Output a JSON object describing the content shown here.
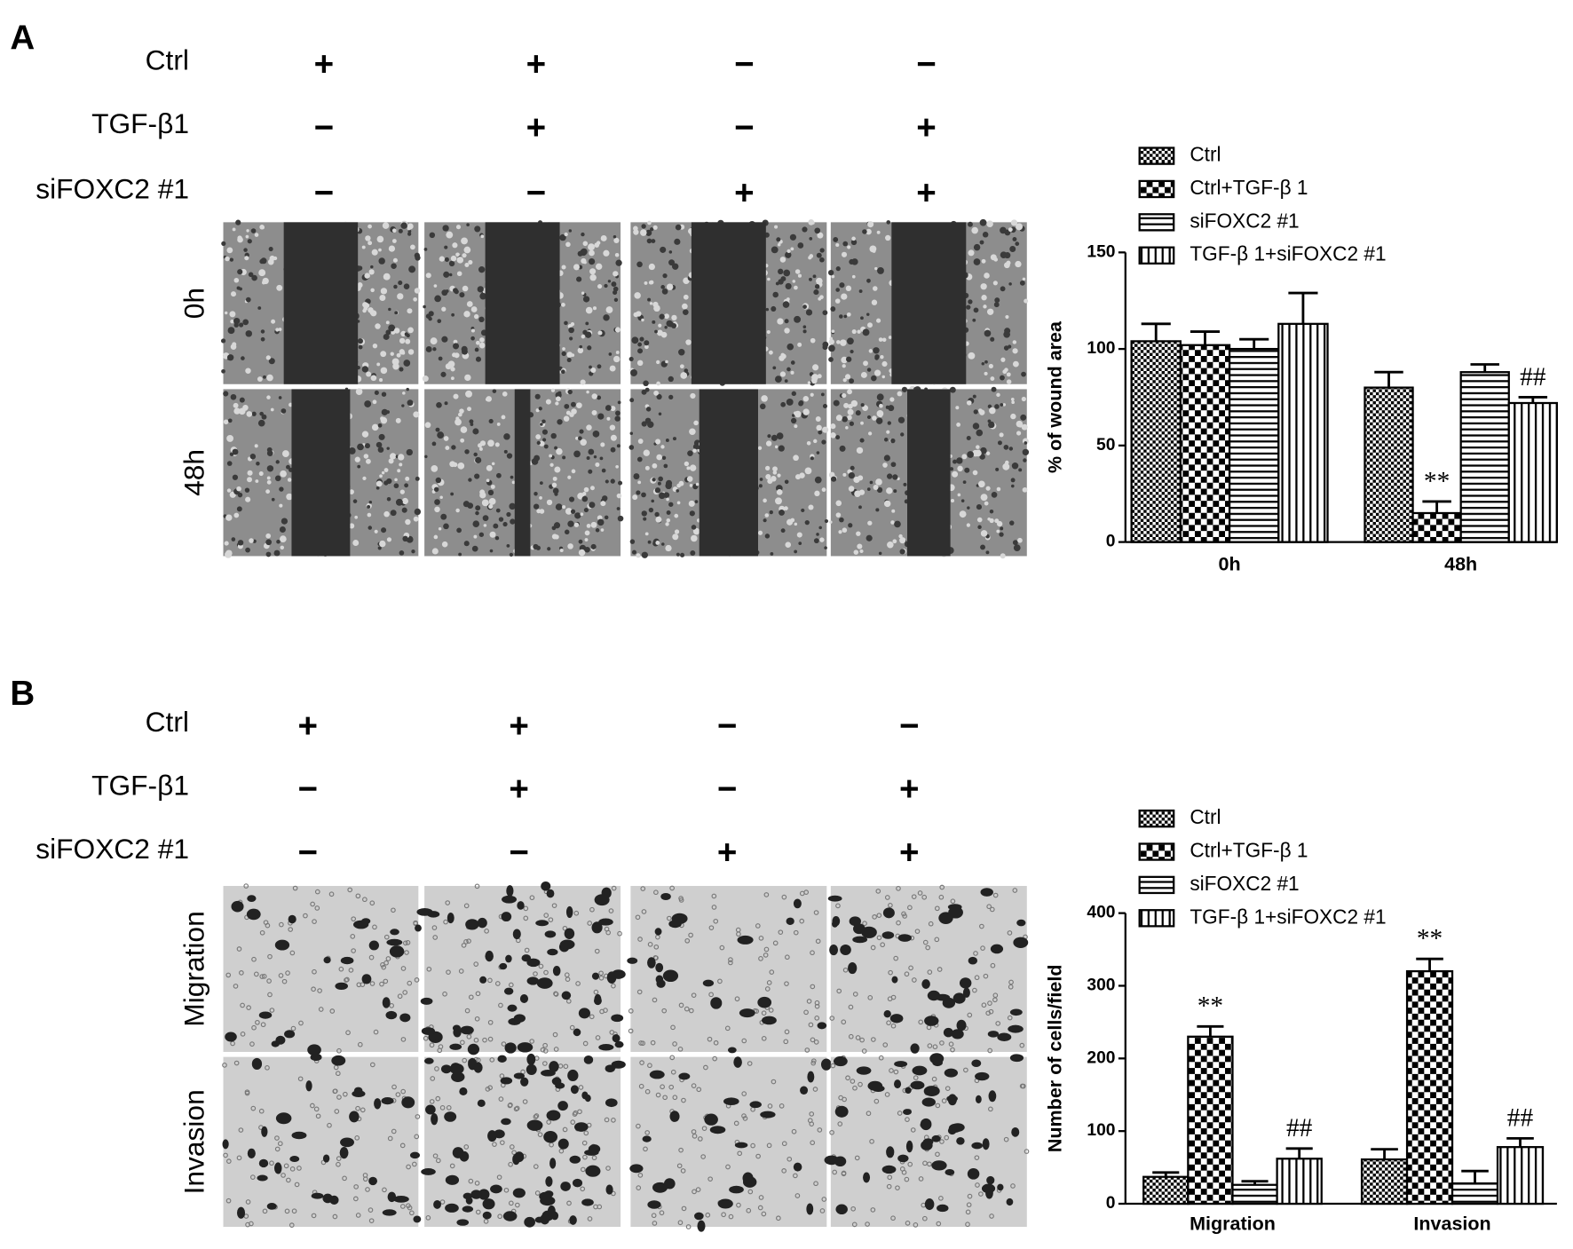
{
  "panels": [
    {
      "letter": "A",
      "treatments": [
        {
          "label": "Ctrl",
          "signs": [
            "+",
            "+",
            "−",
            "−"
          ]
        },
        {
          "label": "TGF-β1",
          "signs": [
            "−",
            "+",
            "−",
            "+"
          ]
        },
        {
          "label": "siFOXC2 #1",
          "signs": [
            "−",
            "−",
            "+",
            "+"
          ]
        }
      ],
      "image_rows": [
        "0h",
        "48h"
      ]
    },
    {
      "letter": "B",
      "treatments": [
        {
          "label": "Ctrl",
          "signs": [
            "+",
            "+",
            "−",
            "−"
          ]
        },
        {
          "label": "TGF-β1",
          "signs": [
            "−",
            "+",
            "−",
            "+"
          ]
        },
        {
          "label": "siFOXC2 #1",
          "signs": [
            "−",
            "−",
            "+",
            "+"
          ]
        }
      ],
      "image_rows": [
        "Migration",
        "Invasion"
      ]
    }
  ],
  "chart_data": [
    {
      "type": "bar",
      "y_label": "% of wound area",
      "categories": [
        "0h",
        "48h"
      ],
      "ylim": [
        0,
        150
      ],
      "yticks": [
        0,
        50,
        100,
        150
      ],
      "series": [
        {
          "name": "Ctrl",
          "color": "#000000",
          "pattern": "checker-fine",
          "values": [
            104,
            80
          ],
          "errors": [
            9,
            8
          ],
          "significance": [
            null,
            null
          ]
        },
        {
          "name": "Ctrl+TGF-β 1",
          "color": "#000000",
          "pattern": "checker",
          "values": [
            102,
            15
          ],
          "errors": [
            7,
            6
          ],
          "significance": [
            null,
            "**"
          ]
        },
        {
          "name": "siFOXC2 #1",
          "color": "#000000",
          "pattern": "horizontal",
          "values": [
            100,
            88
          ],
          "errors": [
            5,
            4
          ],
          "significance": [
            null,
            null
          ]
        },
        {
          "name": "TGF-β 1+siFOXC2 #1",
          "color": "#000000",
          "pattern": "vertical",
          "values": [
            113,
            72
          ],
          "errors": [
            16,
            3
          ],
          "significance": [
            null,
            "##"
          ]
        }
      ]
    },
    {
      "type": "bar",
      "y_label": "Number of cells/field",
      "categories": [
        "Migration",
        "Invasion"
      ],
      "ylim": [
        0,
        400
      ],
      "yticks": [
        0,
        100,
        200,
        300,
        400
      ],
      "series": [
        {
          "name": "Ctrl",
          "color": "#000000",
          "pattern": "checker-fine",
          "values": [
            37,
            61
          ],
          "errors": [
            6,
            14
          ],
          "significance": [
            null,
            null
          ]
        },
        {
          "name": "Ctrl+TGF-β 1",
          "color": "#000000",
          "pattern": "checker",
          "values": [
            230,
            320
          ],
          "errors": [
            14,
            17
          ],
          "significance": [
            "**",
            "**"
          ]
        },
        {
          "name": "siFOXC2 #1",
          "color": "#000000",
          "pattern": "horizontal",
          "values": [
            26,
            28
          ],
          "errors": [
            5,
            17
          ],
          "significance": [
            null,
            null
          ]
        },
        {
          "name": "TGF-β 1+siFOXC2 #1",
          "color": "#000000",
          "pattern": "vertical",
          "values": [
            62,
            78
          ],
          "errors": [
            14,
            12
          ],
          "significance": [
            "##",
            "##"
          ]
        }
      ]
    }
  ]
}
